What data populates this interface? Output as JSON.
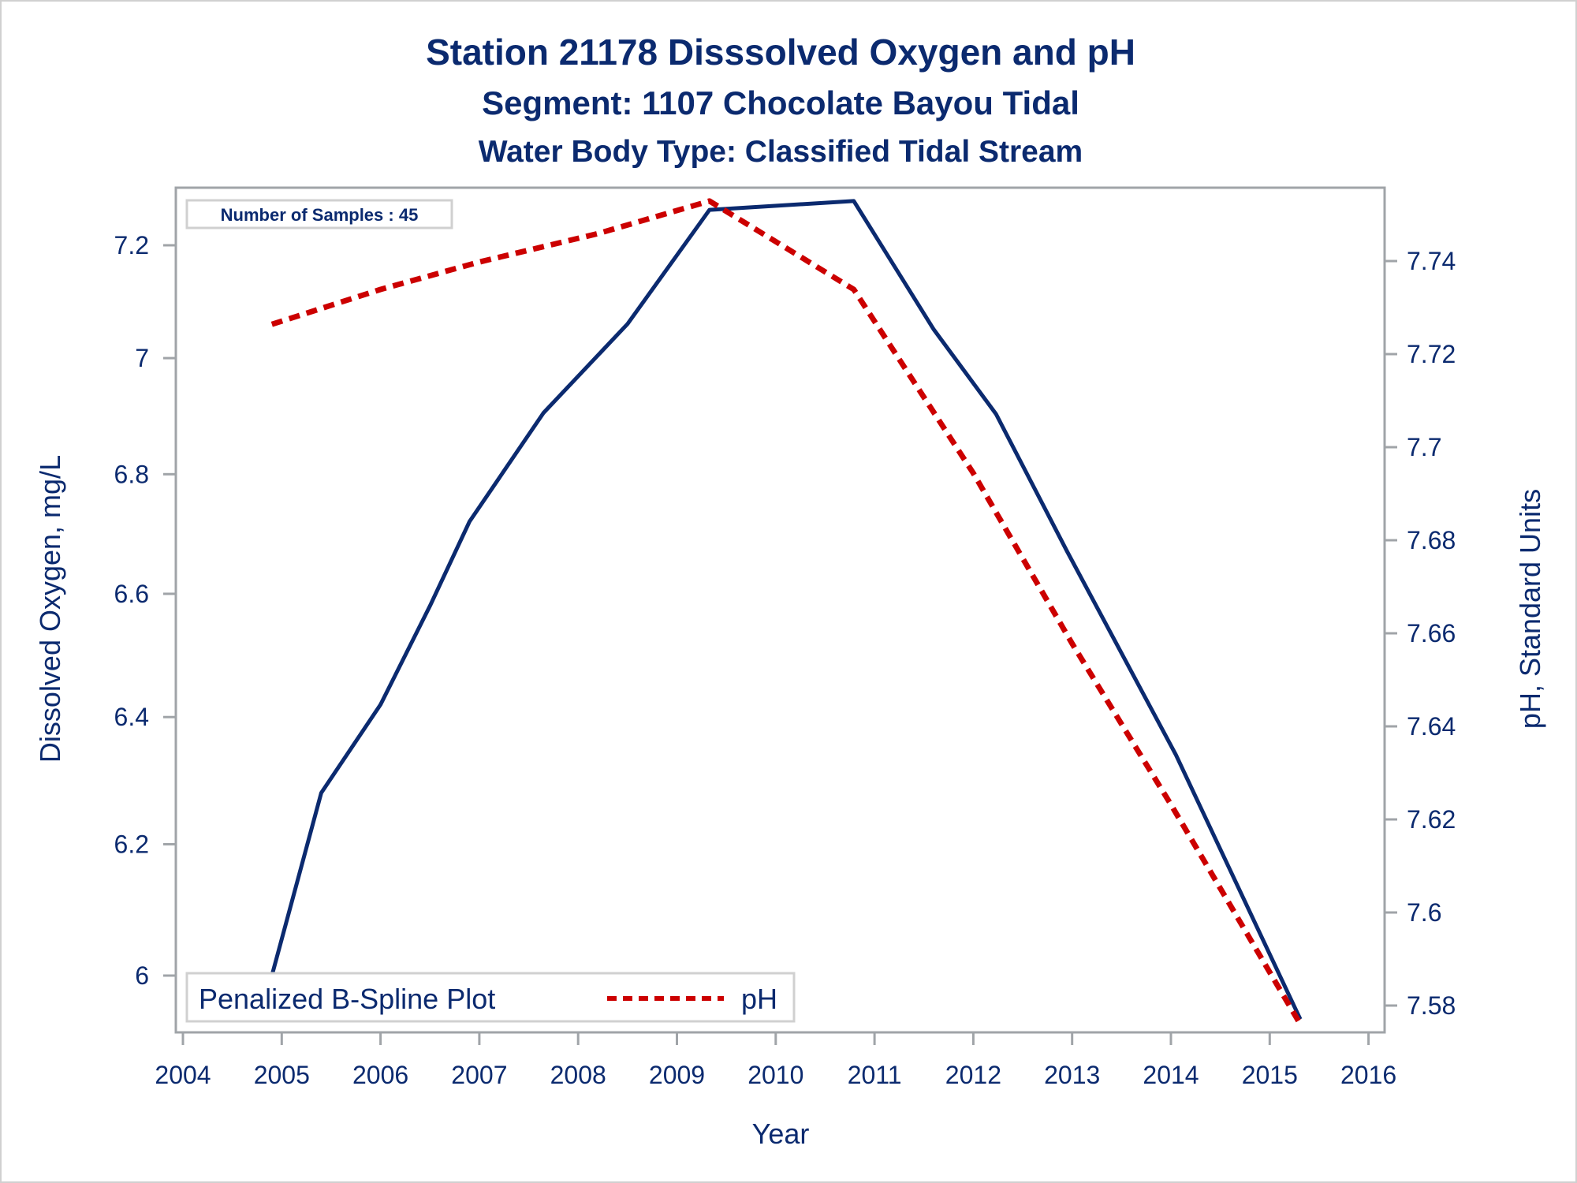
{
  "chart_data": {
    "type": "line",
    "title": "Station 21178   Disssolved Oxygen and pH",
    "subtitle": "Segment: 1107  Chocolate Bayou Tidal",
    "subtitle2": "Water Body Type: Classified Tidal Stream",
    "xlabel": "Year",
    "ylabel": "Dissolved Oxygen, mg/L",
    "y2label": "pH, Standard Units",
    "xlim": [
      2004,
      2016
    ],
    "xticks": [
      "2004",
      "2005",
      "2006",
      "2007",
      "2008",
      "2009",
      "2010",
      "2011",
      "2012",
      "2013",
      "2014",
      "2015",
      "2016"
    ],
    "ylim": [
      5.93,
      7.29
    ],
    "yscale": "log",
    "yticks": [
      "6",
      "6.2",
      "6.4",
      "6.6",
      "6.8",
      "7",
      "7.2"
    ],
    "y2lim": [
      7.5735,
      7.7551
    ],
    "y2ticks": [
      "7.58",
      "7.6",
      "7.62",
      "7.64",
      "7.66",
      "7.68",
      "7.7",
      "7.72",
      "7.74"
    ],
    "annotation": "Number of Samples : 45",
    "legend": {
      "title": "Penalized B-Spline Plot",
      "entries": [
        {
          "label": "pH",
          "style": "dashed",
          "color": "#cc0000"
        }
      ],
      "position": "bottom-left"
    },
    "grid": false,
    "series": [
      {
        "name": "Dissolved Oxygen",
        "axis": "left",
        "color": "#0b2a6f",
        "style": "solid",
        "x": [
          2004.9,
          2005.4,
          2006.0,
          2006.5,
          2006.9,
          2007.65,
          2008.5,
          2009.33,
          2010.79,
          2011.6,
          2012.23,
          2012.95,
          2014.05,
          2015.31
        ],
        "y": [
          6.0,
          6.28,
          6.42,
          6.58,
          6.72,
          6.905,
          7.06,
          7.264,
          7.28,
          7.05,
          6.903,
          6.67,
          6.34,
          5.935
        ]
      },
      {
        "name": "pH",
        "axis": "right",
        "color": "#cc0000",
        "style": "dashed",
        "x": [
          2004.9,
          2006.0,
          2007.0,
          2008.2,
          2009.33,
          2010.79,
          2012.0,
          2013.0,
          2014.0,
          2015.31
        ],
        "y": [
          7.7264,
          7.7339,
          7.7398,
          7.7459,
          7.7529,
          7.7339,
          7.6944,
          7.6578,
          7.6232,
          7.576
        ]
      }
    ]
  }
}
